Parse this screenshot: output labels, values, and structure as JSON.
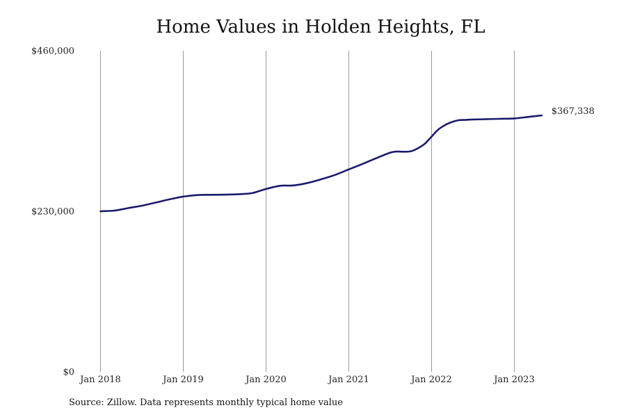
{
  "chart_data": {
    "type": "line",
    "title": "Home Values in Holden Heights, FL",
    "xlabel": "",
    "ylabel": "",
    "ylim": [
      0,
      460000
    ],
    "y_ticks": [
      "$0",
      "$230,000",
      "$460,000"
    ],
    "y_tick_values": [
      0,
      230000,
      460000
    ],
    "x_ticks": [
      "Jan 2018",
      "Jan 2019",
      "Jan 2020",
      "Jan 2021",
      "Jan 2022",
      "Jan 2023"
    ],
    "x_tick_values": [
      2018,
      2019,
      2020,
      2021,
      2022,
      2023
    ],
    "x_range": [
      2018,
      2023.33
    ],
    "grid": "vertical",
    "line_color": "#1a1a6e",
    "end_label": "$367,338",
    "series": [
      {
        "x": [
          2018.0,
          2018.17,
          2018.33,
          2018.5,
          2018.67,
          2018.83,
          2019.0,
          2019.17,
          2019.33,
          2019.5,
          2019.67,
          2019.83,
          2020.0,
          2020.17,
          2020.33,
          2020.5,
          2020.67,
          2020.83,
          2021.0,
          2021.17,
          2021.33,
          2021.5,
          2021.58,
          2021.67,
          2021.75,
          2021.83,
          2021.92,
          2022.0,
          2022.08,
          2022.17,
          2022.25,
          2022.33,
          2022.42,
          2022.5,
          2022.67,
          2022.83,
          2023.0,
          2023.17,
          2023.33
        ],
        "y": [
          230000,
          231000,
          234500,
          238000,
          242500,
          247000,
          251000,
          253200,
          253600,
          253800,
          254500,
          256000,
          262000,
          266500,
          267000,
          270500,
          276000,
          282000,
          290000,
          298000,
          306000,
          314000,
          315500,
          315300,
          316000,
          320000,
          327000,
          337000,
          347000,
          354000,
          358000,
          360500,
          361000,
          361500,
          362000,
          362500,
          363000,
          365200,
          367338
        ]
      }
    ]
  },
  "source_note": "Source: Zillow. Data represents monthly typical home value"
}
